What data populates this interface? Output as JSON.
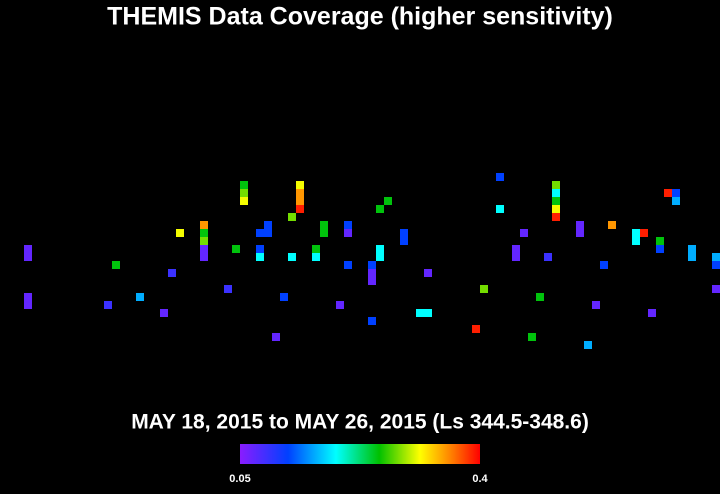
{
  "chart_data": {
    "type": "scatter",
    "title": "THEMIS Data Coverage (higher sensitivity)",
    "subtitle": "MAY 18, 2015 to MAY 26, 2015 (Ls 344.5-348.6)",
    "x": [
      3,
      3,
      3,
      3,
      14,
      13,
      17,
      20,
      21,
      22,
      25,
      25,
      25,
      25,
      25,
      28,
      29,
      30,
      30,
      30,
      32,
      32,
      32,
      33,
      33,
      34,
      35,
      36,
      36,
      37,
      37,
      37,
      37,
      39,
      39,
      40,
      40,
      42,
      43,
      43,
      43,
      46,
      46,
      46,
      46,
      47,
      48,
      47,
      47,
      50,
      50,
      53,
      52,
      53,
      59,
      60,
      62,
      62,
      64,
      64,
      65,
      66,
      67,
      68,
      69,
      69,
      69,
      69,
      69,
      72,
      72,
      73,
      74,
      75,
      76,
      79,
      79,
      80,
      81,
      82,
      82,
      83,
      84,
      84,
      86,
      86,
      89,
      89,
      89
    ],
    "y": [
      30,
      31,
      36,
      37,
      32,
      37,
      36,
      38,
      33,
      28,
      27,
      28,
      29,
      30,
      31,
      35,
      30,
      22,
      23,
      24,
      28,
      30,
      31,
      27,
      28,
      41,
      36,
      26,
      31,
      22,
      23,
      24,
      25,
      30,
      31,
      27,
      28,
      37,
      27,
      28,
      32,
      32,
      33,
      34,
      39,
      25,
      24,
      30,
      31,
      28,
      29,
      33,
      38,
      38,
      40,
      35,
      21,
      25,
      30,
      31,
      28,
      41,
      36,
      31,
      22,
      23,
      24,
      25,
      26,
      27,
      28,
      42,
      37,
      32,
      27,
      28,
      29,
      28,
      38,
      29,
      30,
      23,
      23,
      24,
      30,
      31,
      31,
      32,
      35
    ],
    "values": [
      0.07,
      0.07,
      0.07,
      0.07,
      0.25,
      0.09,
      0.16,
      0.07,
      0.09,
      0.31,
      0.35,
      0.25,
      0.28,
      0.07,
      0.07,
      0.09,
      0.25,
      0.25,
      0.28,
      0.31,
      0.12,
      0.12,
      0.19,
      0.12,
      0.12,
      0.07,
      0.12,
      0.28,
      0.19,
      0.31,
      0.35,
      0.35,
      0.39,
      0.25,
      0.19,
      0.25,
      0.25,
      0.07,
      0.12,
      0.07,
      0.12,
      0.12,
      0.07,
      0.07,
      0.12,
      0.25,
      0.25,
      0.19,
      0.19,
      0.12,
      0.12,
      0.07,
      0.19,
      0.19,
      0.39,
      0.28,
      0.12,
      0.19,
      0.07,
      0.07,
      0.07,
      0.25,
      0.25,
      0.09,
      0.28,
      0.19,
      0.25,
      0.31,
      0.39,
      0.07,
      0.07,
      0.16,
      0.07,
      0.12,
      0.35,
      0.19,
      0.19,
      0.39,
      0.07,
      0.25,
      0.12,
      0.39,
      0.12,
      0.16,
      0.16,
      0.16,
      0.16,
      0.12,
      0.07
    ],
    "clim": [
      0.05,
      0.4
    ],
    "cticks": [
      0.05,
      0.4
    ]
  }
}
